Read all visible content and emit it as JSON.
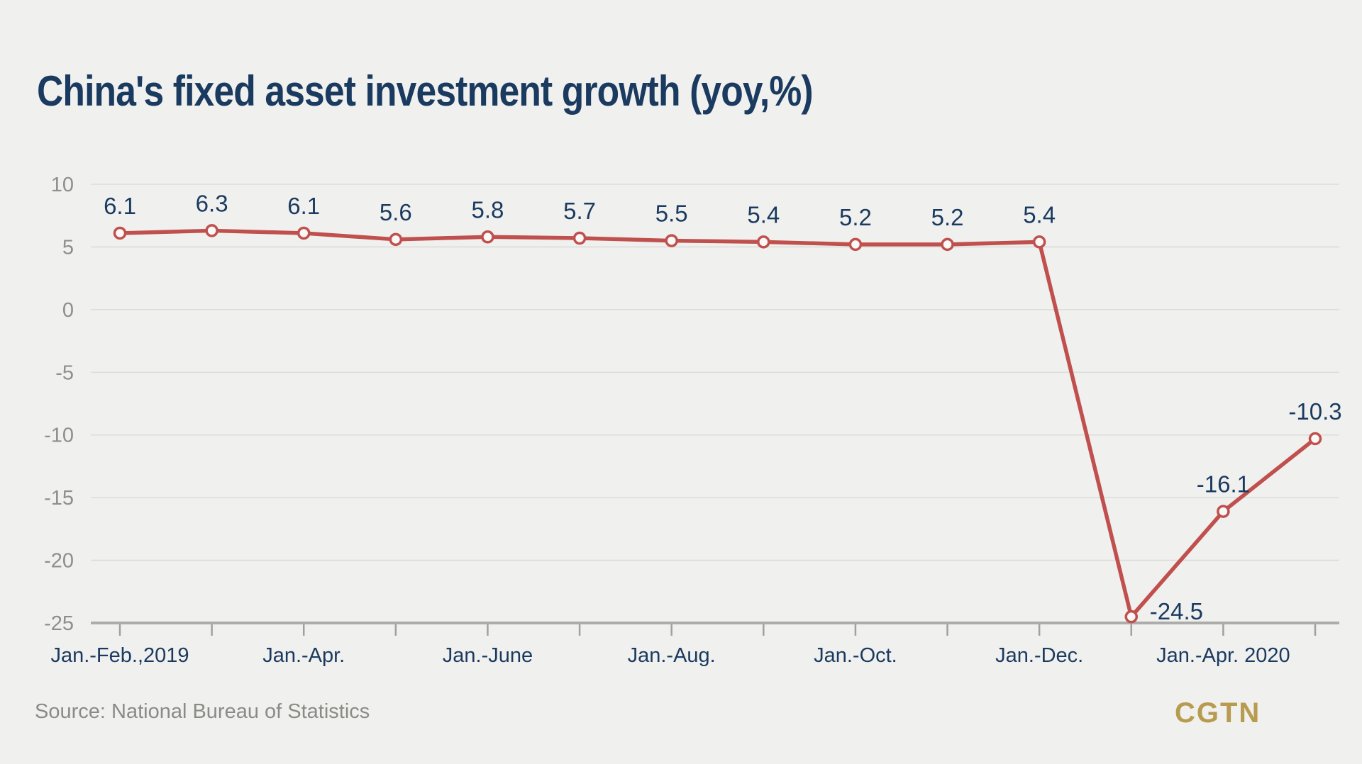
{
  "page": {
    "background": "#f0f0ee"
  },
  "title": {
    "text": "China's fixed asset investment growth (yoy,%)",
    "color": "#1a3a5f"
  },
  "source": {
    "text": "Source: National Bureau of Statistics",
    "color": "#8b8b86"
  },
  "branding": {
    "logo_text": "CGTN",
    "color": "#b79b4f"
  },
  "chart_data": {
    "type": "line",
    "title": "China's fixed asset investment growth (yoy,%)",
    "values": [
      6.1,
      6.3,
      6.1,
      5.6,
      5.8,
      5.7,
      5.5,
      5.4,
      5.2,
      5.2,
      5.4,
      -24.5,
      -16.1,
      -10.3
    ],
    "point_labels": [
      "6.1",
      "6.3",
      "6.1",
      "5.6",
      "5.8",
      "5.7",
      "5.5",
      "5.4",
      "5.2",
      "5.2",
      "5.4",
      "-24.5",
      "-16.1",
      "-10.3"
    ],
    "label_placement": [
      "above",
      "above",
      "above",
      "above",
      "above",
      "above",
      "above",
      "above",
      "above",
      "above",
      "above",
      "right",
      "above",
      "above"
    ],
    "x_tick_labels": [
      {
        "point_index": 0,
        "label": "Jan.-Feb.,2019"
      },
      {
        "point_index": 2,
        "label": "Jan.-Apr."
      },
      {
        "point_index": 4,
        "label": "Jan.-June"
      },
      {
        "point_index": 6,
        "label": "Jan.-Aug."
      },
      {
        "point_index": 8,
        "label": "Jan.-Oct."
      },
      {
        "point_index": 10,
        "label": "Jan.-Dec."
      },
      {
        "point_index": 12,
        "label": "Jan.-Apr. 2020"
      }
    ],
    "y_ticks": [
      10,
      5,
      0,
      -5,
      -10,
      -15,
      -20,
      -25
    ],
    "ylim": [
      -25,
      10
    ],
    "grid": true,
    "legend": false,
    "colors": {
      "line": "#c0504d",
      "marker_fill": "#faf9f7",
      "marker_stroke": "#c0504d",
      "gridline": "#dcdcd9",
      "axis_line": "#acacaa",
      "tick": "#a0a09d",
      "y_label": "#8e8e8a",
      "x_label": "#1a3a5f",
      "point_label": "#1a3a5f"
    }
  }
}
